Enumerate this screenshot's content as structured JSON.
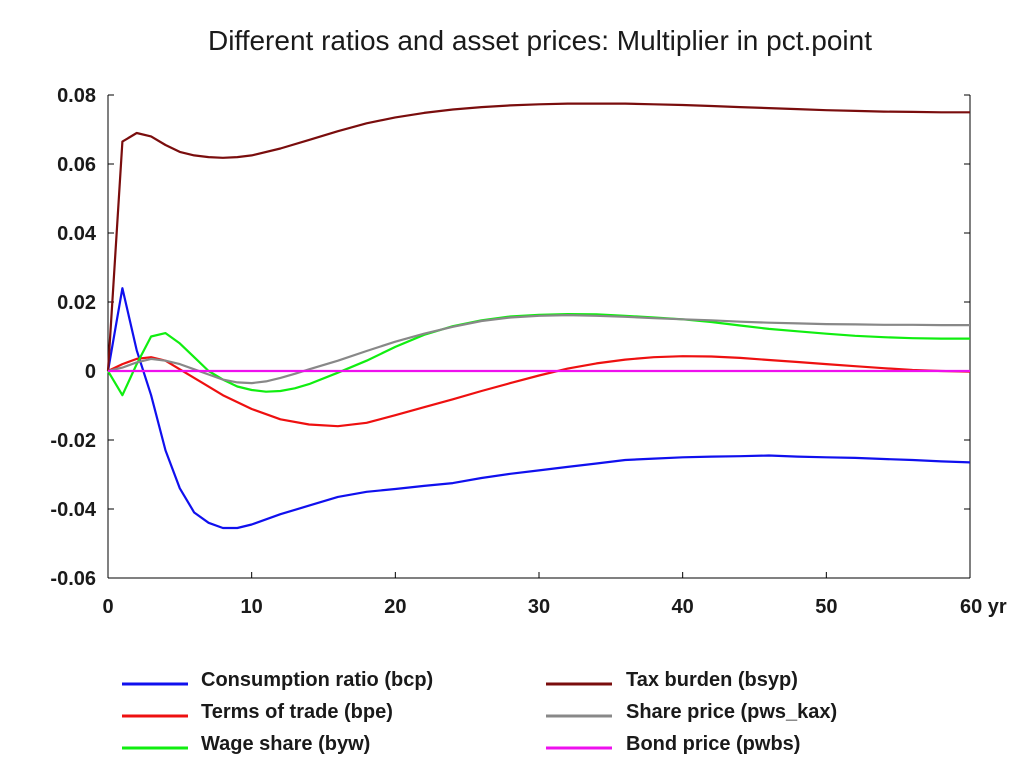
{
  "chart_data": {
    "type": "line",
    "title": "Different ratios and asset prices: Multiplier in pct.point",
    "xlabel": "",
    "ylabel": "",
    "xlim": [
      0,
      60
    ],
    "ylim": [
      -0.06,
      0.08
    ],
    "x_ticks": [
      0,
      10,
      20,
      30,
      40,
      50,
      60
    ],
    "x_tick_labels": [
      "0",
      "10",
      "20",
      "30",
      "40",
      "50",
      "60 yr"
    ],
    "y_ticks": [
      -0.06,
      -0.04,
      -0.02,
      0,
      0.02,
      0.04,
      0.06,
      0.08
    ],
    "y_tick_labels": [
      "-0.06",
      "-0.04",
      "-0.02",
      "0",
      "0.02",
      "0.04",
      "0.06",
      "0.08"
    ],
    "grid": false,
    "legend_position": "bottom",
    "series": [
      {
        "name": "Consumption ratio (bcp)",
        "color": "#1010ee",
        "x": [
          0,
          1,
          2,
          3,
          4,
          5,
          6,
          7,
          8,
          9,
          10,
          12,
          14,
          16,
          18,
          20,
          22,
          24,
          26,
          28,
          30,
          32,
          34,
          36,
          38,
          40,
          42,
          44,
          46,
          48,
          50,
          52,
          54,
          56,
          58,
          60
        ],
        "y": [
          0,
          0.024,
          0.006,
          -0.007,
          -0.023,
          -0.034,
          -0.041,
          -0.044,
          -0.0455,
          -0.0455,
          -0.0445,
          -0.0415,
          -0.039,
          -0.0365,
          -0.035,
          -0.0342,
          -0.0333,
          -0.0325,
          -0.031,
          -0.0298,
          -0.0288,
          -0.0278,
          -0.0268,
          -0.0258,
          -0.0254,
          -0.025,
          -0.0248,
          -0.0247,
          -0.0245,
          -0.0248,
          -0.025,
          -0.0252,
          -0.0255,
          -0.0258,
          -0.0262,
          -0.0265
        ]
      },
      {
        "name": "Terms of trade (bpe)",
        "color": "#ee1010",
        "x": [
          0,
          1,
          2,
          3,
          4,
          5,
          6,
          8,
          10,
          12,
          14,
          16,
          18,
          20,
          22,
          24,
          26,
          28,
          30,
          32,
          34,
          36,
          38,
          40,
          42,
          44,
          46,
          48,
          50,
          52,
          54,
          56,
          58,
          60
        ],
        "y": [
          0,
          0.002,
          0.0035,
          0.004,
          0.003,
          0.0005,
          -0.002,
          -0.007,
          -0.011,
          -0.014,
          -0.0155,
          -0.016,
          -0.015,
          -0.0128,
          -0.0105,
          -0.0082,
          -0.0058,
          -0.0035,
          -0.0013,
          0.0007,
          0.0022,
          0.0033,
          0.004,
          0.0043,
          0.0042,
          0.0038,
          0.0032,
          0.0026,
          0.002,
          0.0014,
          0.0008,
          0.0003,
          0.0,
          -0.0002
        ]
      },
      {
        "name": "Wage share (byw)",
        "color": "#10ee10",
        "x": [
          0,
          1,
          2,
          3,
          4,
          5,
          6,
          7,
          8,
          9,
          10,
          11,
          12,
          13,
          14,
          16,
          18,
          20,
          22,
          24,
          26,
          28,
          30,
          32,
          34,
          36,
          38,
          40,
          42,
          44,
          46,
          48,
          50,
          52,
          54,
          56,
          58,
          60
        ],
        "y": [
          0,
          -0.007,
          0.002,
          0.01,
          0.011,
          0.008,
          0.004,
          0.0,
          -0.0025,
          -0.0045,
          -0.0055,
          -0.006,
          -0.0058,
          -0.005,
          -0.0038,
          -0.0005,
          0.003,
          0.007,
          0.0105,
          0.013,
          0.0147,
          0.0158,
          0.0163,
          0.0165,
          0.0164,
          0.016,
          0.0155,
          0.015,
          0.0142,
          0.0132,
          0.0122,
          0.0115,
          0.0108,
          0.0102,
          0.0098,
          0.0095,
          0.0094,
          0.0094
        ]
      },
      {
        "name": "Tax burden (bsyp)",
        "color": "#7a0d0d",
        "x": [
          0,
          1,
          2,
          3,
          4,
          5,
          6,
          7,
          8,
          9,
          10,
          12,
          14,
          16,
          18,
          20,
          22,
          24,
          26,
          28,
          30,
          32,
          34,
          36,
          38,
          40,
          42,
          44,
          46,
          48,
          50,
          52,
          54,
          56,
          58,
          60
        ],
        "y": [
          0,
          0.0665,
          0.069,
          0.068,
          0.0655,
          0.0635,
          0.0625,
          0.062,
          0.0618,
          0.062,
          0.0625,
          0.0645,
          0.067,
          0.0695,
          0.0718,
          0.0735,
          0.0748,
          0.0758,
          0.0765,
          0.077,
          0.0773,
          0.0775,
          0.0775,
          0.0775,
          0.0773,
          0.0771,
          0.0768,
          0.0765,
          0.0762,
          0.0759,
          0.0756,
          0.0754,
          0.0752,
          0.0751,
          0.075,
          0.075
        ]
      },
      {
        "name": "Share price (pws_kax)",
        "color": "#888888",
        "x": [
          0,
          1,
          2,
          3,
          4,
          5,
          6,
          7,
          8,
          9,
          10,
          11,
          12,
          13,
          14,
          16,
          18,
          20,
          22,
          24,
          26,
          28,
          30,
          32,
          34,
          36,
          38,
          40,
          42,
          44,
          46,
          48,
          50,
          52,
          54,
          56,
          58,
          60
        ],
        "y": [
          0,
          0.001,
          0.0025,
          0.0035,
          0.003,
          0.002,
          0.0005,
          -0.001,
          -0.0025,
          -0.0033,
          -0.0035,
          -0.003,
          -0.002,
          -0.0008,
          0.0005,
          0.003,
          0.0058,
          0.0085,
          0.0108,
          0.0128,
          0.0145,
          0.0155,
          0.016,
          0.0162,
          0.016,
          0.0157,
          0.0153,
          0.015,
          0.0147,
          0.0143,
          0.014,
          0.0138,
          0.0136,
          0.0135,
          0.0134,
          0.0134,
          0.0133,
          0.0133
        ]
      },
      {
        "name": "Bond price (pwbs)",
        "color": "#ee10ee",
        "x": [
          0,
          10,
          20,
          30,
          40,
          50,
          60
        ],
        "y": [
          0,
          0,
          0,
          0,
          0,
          0,
          0
        ]
      }
    ]
  }
}
